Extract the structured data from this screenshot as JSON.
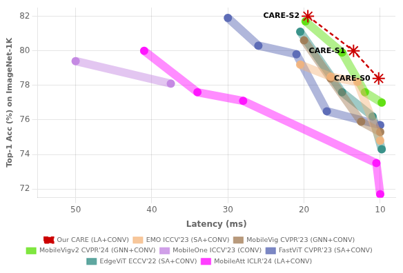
{
  "chart_data": {
    "type": "line",
    "xlabel": "Latency (ms)",
    "ylabel": "Top-1 Acc (%) on ImageNet-1K",
    "xlim": [
      55,
      8
    ],
    "ylim": [
      71.5,
      82.5
    ],
    "xticks": [
      10,
      20,
      30,
      40,
      50
    ],
    "yticks": [
      72,
      74,
      76,
      78,
      80,
      82
    ],
    "grid": true,
    "legend": "bottom",
    "series": [
      {
        "name": "Our CARE (LA+CONV)",
        "color": "#CC0000",
        "line_style": "dashed",
        "marker": "star",
        "x": [
          19.5,
          13.5,
          10.2
        ],
        "values": [
          82.0,
          80.0,
          78.4
        ]
      },
      {
        "name": "EMO ICCV'23 (SA+CONV)",
        "color": "#F4B47A",
        "x": [
          20.5,
          16.5,
          13.0,
          10.0
        ],
        "values": [
          79.2,
          78.5,
          78.2,
          74.8
        ]
      },
      {
        "name": "MobileVig CVPR'23 (GNN+CONV)",
        "color": "#A07850",
        "x": [
          20.0,
          16.5,
          12.5,
          10.0
        ],
        "values": [
          80.6,
          78.4,
          75.9,
          75.3
        ]
      },
      {
        "name": "MobileVigv2 CVPR'24 (GNN+CONV)",
        "color": "#55DD00",
        "x": [
          19.8,
          15.0,
          12.0,
          9.8
        ],
        "values": [
          81.7,
          79.9,
          77.6,
          77.0
        ]
      },
      {
        "name": "MobileOne ICCV'23 (CONV)",
        "color": "#C080E0",
        "x": [
          50.0,
          37.5
        ],
        "values": [
          79.4,
          78.1
        ]
      },
      {
        "name": "FastViT CVPR'23 (SA+CONV)",
        "color": "#5060B0",
        "x": [
          30.0,
          26.0,
          21.0,
          17.0,
          10.0
        ],
        "values": [
          81.9,
          80.3,
          79.8,
          76.5,
          75.7
        ]
      },
      {
        "name": "EdgeViT ECCV'22 (SA+CONV)",
        "color": "#2A8A80",
        "x": [
          20.5,
          15.0,
          11.0,
          9.8
        ],
        "values": [
          81.1,
          77.6,
          76.2,
          74.3
        ]
      },
      {
        "name": "MobileAtt ICLR'24 (LA+CONV)",
        "color": "#FF00FF",
        "x": [
          41.0,
          34.0,
          28.0,
          10.5,
          10.0
        ],
        "values": [
          80.0,
          77.6,
          77.1,
          73.5,
          71.7
        ]
      }
    ],
    "annotations": [
      {
        "text": "CARE-S2",
        "x": 19.5,
        "y": 82.0
      },
      {
        "text": "CARE-S1",
        "x": 13.5,
        "y": 80.0
      },
      {
        "text": "CARE-S0",
        "x": 10.2,
        "y": 78.4
      }
    ]
  }
}
